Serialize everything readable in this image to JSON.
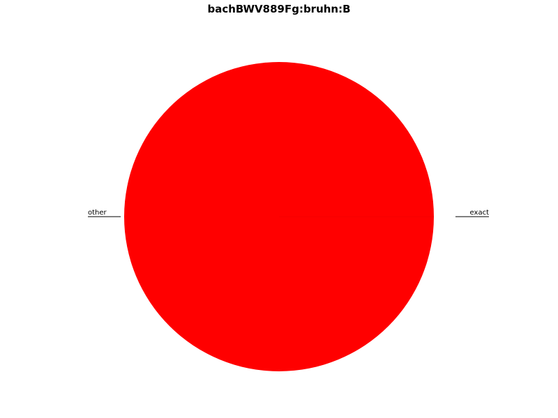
{
  "chart_data": {
    "type": "pie",
    "title": "bachBWV889Fg:bruhn:B",
    "slices": [
      {
        "label": "exact",
        "value": 0.0,
        "color": "#ff0000"
      },
      {
        "label": "other",
        "value": 100.0,
        "color": "#ff0000"
      }
    ],
    "start_angle_deg": 0,
    "direction": "counterclockwise"
  }
}
